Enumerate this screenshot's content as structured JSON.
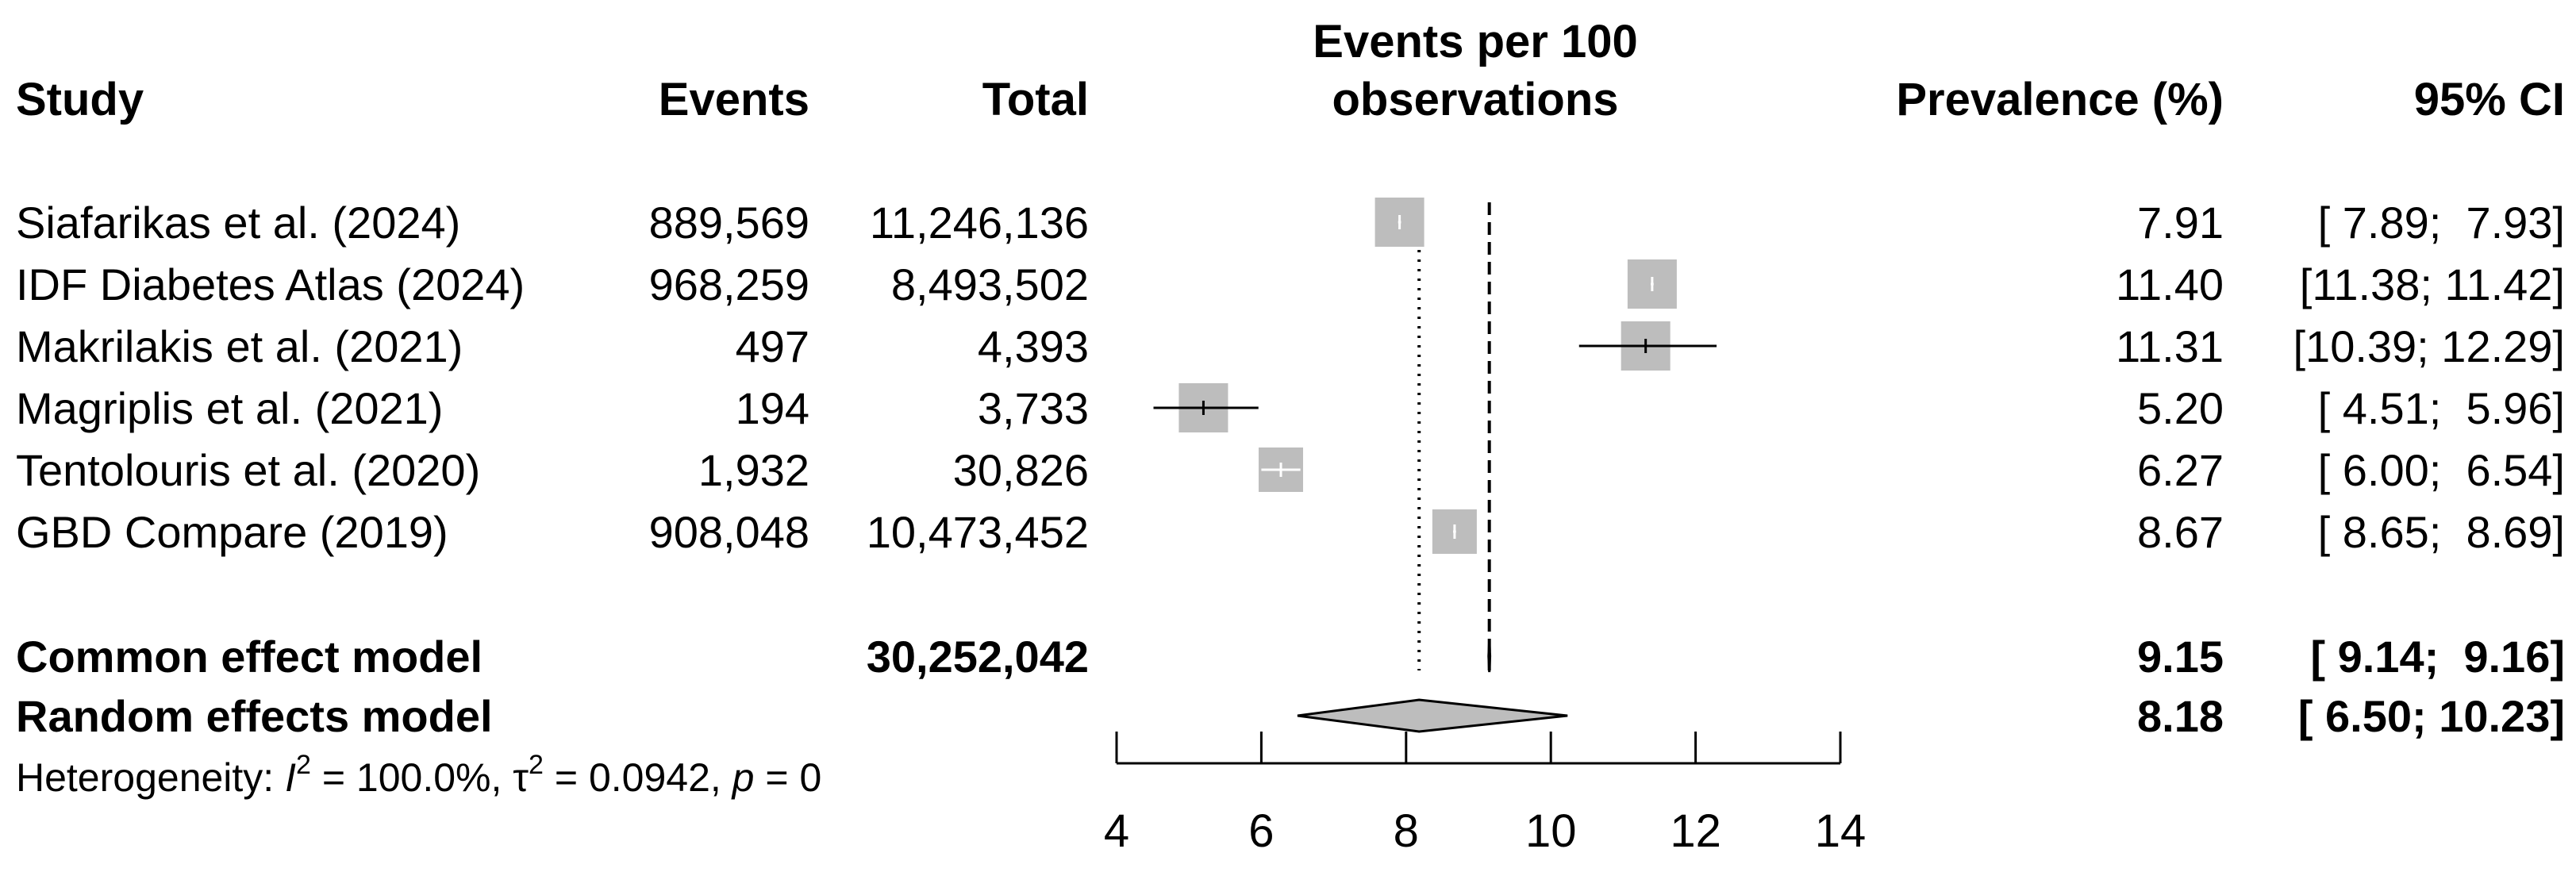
{
  "chart_data": {
    "type": "forest",
    "title": "Events per 100 observations",
    "columns": {
      "study": "Study",
      "events": "Events",
      "total": "Total",
      "plot": [
        "Events per 100",
        "observations"
      ],
      "prevalence": "Prevalence (%)",
      "ci": "95% CI"
    },
    "studies": [
      {
        "study": "Siafarikas et al. (2024)",
        "events": "889,569",
        "total": "11,246,136",
        "prevalence": 7.91,
        "prevalence_label": "7.91",
        "lower": 7.89,
        "upper": 7.93,
        "ci_label": "[ 7.89;  7.93]"
      },
      {
        "study": "IDF Diabetes Atlas (2024)",
        "events": "968,259",
        "total": "8,493,502",
        "prevalence": 11.4,
        "prevalence_label": "11.40",
        "lower": 11.38,
        "upper": 11.42,
        "ci_label": "[11.38; 11.42]"
      },
      {
        "study": "Makrilakis et al. (2021)",
        "events": "497",
        "total": "4,393",
        "prevalence": 11.31,
        "prevalence_label": "11.31",
        "lower": 10.39,
        "upper": 12.29,
        "ci_label": "[10.39; 12.29]"
      },
      {
        "study": "Magriplis et al. (2021)",
        "events": "194",
        "total": "3,733",
        "prevalence": 5.2,
        "prevalence_label": "5.20",
        "lower": 4.51,
        "upper": 5.96,
        "ci_label": "[ 4.51;  5.96]"
      },
      {
        "study": "Tentolouris et al. (2020)",
        "events": "1,932",
        "total": "30,826",
        "prevalence": 6.27,
        "prevalence_label": "6.27",
        "lower": 6.0,
        "upper": 6.54,
        "ci_label": "[ 6.00;  6.54]"
      },
      {
        "study": "GBD Compare (2019)",
        "events": "908,048",
        "total": "10,473,452",
        "prevalence": 8.67,
        "prevalence_label": "8.67",
        "lower": 8.65,
        "upper": 8.69,
        "ci_label": "[ 8.65;  8.69]"
      }
    ],
    "common_effect": {
      "label": "Common effect model",
      "total": "30,252,042",
      "estimate": 9.15,
      "estimate_label": "9.15",
      "lower": 9.14,
      "upper": 9.16,
      "ci_label": "[ 9.14;  9.16]"
    },
    "random_effects": {
      "label": "Random effects model",
      "estimate": 8.18,
      "estimate_label": "8.18",
      "lower": 6.5,
      "upper": 10.23,
      "ci_label": "[ 6.50; 10.23]"
    },
    "heterogeneity": {
      "prefix": "Heterogeneity: ",
      "i2_symbol": "I",
      "i2_exp": "2",
      "i2_value": " = 100.0%, ",
      "tau_symbol": "τ",
      "tau_exp": "2",
      "tau_value": " = 0.0942, ",
      "p_symbol": "p",
      "p_value": " = 0"
    },
    "x_axis": {
      "range": [
        4,
        14
      ],
      "ticks": [
        4,
        6,
        8,
        10,
        12,
        14
      ],
      "tick_labels": [
        "4",
        "6",
        "8",
        "10",
        "12",
        "14"
      ]
    },
    "reference_lines": {
      "common_effect": 9.15,
      "random_effects": 8.18
    },
    "colors": {
      "square": "#bdbdbd",
      "diamond": "#bdbdbd",
      "line": "#000000",
      "whisker_inside": "#ffffff"
    }
  }
}
